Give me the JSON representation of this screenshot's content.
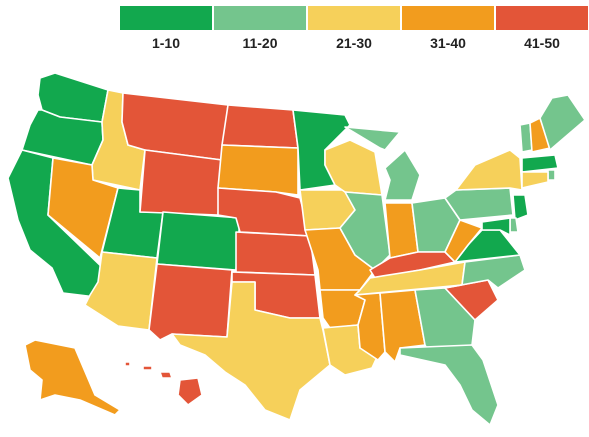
{
  "legend": [
    {
      "label": "1-10",
      "color": "#12a84e"
    },
    {
      "label": "11-20",
      "color": "#74c58d"
    },
    {
      "label": "21-30",
      "color": "#f6d05a"
    },
    {
      "label": "31-40",
      "color": "#f29c1e"
    },
    {
      "label": "41-50",
      "color": "#e35538"
    }
  ],
  "states": [
    {
      "name": "WA",
      "tier": 0
    },
    {
      "name": "OR",
      "tier": 0
    },
    {
      "name": "CA",
      "tier": 0
    },
    {
      "name": "ID",
      "tier": 2
    },
    {
      "name": "NV",
      "tier": 3
    },
    {
      "name": "UT",
      "tier": 0
    },
    {
      "name": "AZ",
      "tier": 2
    },
    {
      "name": "MT",
      "tier": 4
    },
    {
      "name": "WY",
      "tier": 4
    },
    {
      "name": "CO",
      "tier": 0
    },
    {
      "name": "NM",
      "tier": 4
    },
    {
      "name": "ND",
      "tier": 4
    },
    {
      "name": "SD",
      "tier": 3
    },
    {
      "name": "NE",
      "tier": 4
    },
    {
      "name": "KS",
      "tier": 4
    },
    {
      "name": "OK",
      "tier": 4
    },
    {
      "name": "TX",
      "tier": 2
    },
    {
      "name": "MN",
      "tier": 0
    },
    {
      "name": "IA",
      "tier": 2
    },
    {
      "name": "MO",
      "tier": 3
    },
    {
      "name": "AR",
      "tier": 3
    },
    {
      "name": "LA",
      "tier": 2
    },
    {
      "name": "WI",
      "tier": 2
    },
    {
      "name": "IL",
      "tier": 1
    },
    {
      "name": "MI",
      "tier": 1
    },
    {
      "name": "IN",
      "tier": 3
    },
    {
      "name": "OH",
      "tier": 1
    },
    {
      "name": "KY",
      "tier": 4
    },
    {
      "name": "TN",
      "tier": 2
    },
    {
      "name": "MS",
      "tier": 3
    },
    {
      "name": "AL",
      "tier": 3
    },
    {
      "name": "GA",
      "tier": 1
    },
    {
      "name": "FL",
      "tier": 1
    },
    {
      "name": "SC",
      "tier": 4
    },
    {
      "name": "NC",
      "tier": 1
    },
    {
      "name": "VA",
      "tier": 0
    },
    {
      "name": "WV",
      "tier": 3
    },
    {
      "name": "PA",
      "tier": 1
    },
    {
      "name": "NY",
      "tier": 2
    },
    {
      "name": "VT",
      "tier": 1
    },
    {
      "name": "NH",
      "tier": 3
    },
    {
      "name": "ME",
      "tier": 1
    },
    {
      "name": "MA",
      "tier": 0
    },
    {
      "name": "RI",
      "tier": 1
    },
    {
      "name": "CT",
      "tier": 2
    },
    {
      "name": "NJ",
      "tier": 0
    },
    {
      "name": "DE",
      "tier": 1
    },
    {
      "name": "MD",
      "tier": 0
    },
    {
      "name": "AK",
      "tier": 3
    },
    {
      "name": "HI",
      "tier": 4
    }
  ]
}
